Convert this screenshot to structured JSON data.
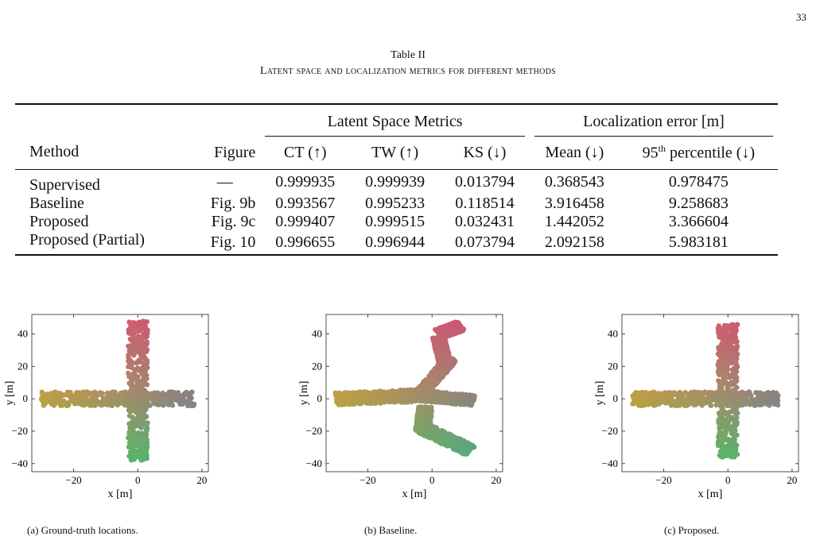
{
  "page_number": "33",
  "table": {
    "title": "Table II",
    "caption": "Latent space and localization metrics for different methods",
    "group_headers": [
      "Latent Space Metrics",
      "Localization error [m]"
    ],
    "columns": [
      "Method",
      "Figure",
      "CT (↑)",
      "TW (↑)",
      "KS (↓)",
      "Mean (↓)",
      "95th percentile (↓)"
    ],
    "col95_main": "95",
    "col95_sup": "th",
    "col95_rest": " percentile (↓)",
    "rows": [
      [
        "Supervised",
        "—",
        "0.999935",
        "0.999939",
        "0.013794",
        "0.368543",
        "0.978475"
      ],
      [
        "Baseline",
        "Fig. 9b",
        "0.993567",
        "0.995233",
        "0.118514",
        "3.916458",
        "9.258683"
      ],
      [
        "Proposed",
        "Fig. 9c",
        "0.999407",
        "0.999515",
        "0.032431",
        "1.442052",
        "3.366604"
      ],
      [
        "Proposed (Partial)",
        "Fig. 10",
        "0.996655",
        "0.996944",
        "0.073794",
        "2.092158",
        "5.983181"
      ]
    ]
  },
  "chart_data": [
    {
      "type": "scatter",
      "caption": "(a) Ground-truth locations.",
      "xlabel": "x [m]",
      "ylabel": "y [m]",
      "xlim": [
        -33,
        22
      ],
      "ylim": [
        -45,
        52
      ],
      "xticks": [
        -20,
        0,
        20
      ],
      "yticks": [
        -40,
        -20,
        0,
        20,
        40
      ],
      "arms": [
        {
          "from": [
            -30,
            0
          ],
          "to": [
            18,
            0
          ],
          "width": 9
        },
        {
          "from": [
            0,
            -38
          ],
          "to": [
            0,
            48
          ],
          "width": 11
        }
      ]
    },
    {
      "type": "scatter",
      "caption": "(b) Baseline.",
      "xlabel": "x [m]",
      "ylabel": "y [m]",
      "xlim": [
        -33,
        22
      ],
      "ylim": [
        -45,
        52
      ],
      "xticks": [
        -20,
        0,
        20
      ],
      "yticks": [
        -40,
        -20,
        0,
        20,
        40
      ],
      "arms": [
        {
          "from": [
            -30,
            0
          ],
          "to": [
            -4,
            2
          ],
          "width": 8
        },
        {
          "from": [
            -4,
            2
          ],
          "to": [
            13,
            -1
          ],
          "width": 7
        },
        {
          "from": [
            -4,
            2
          ],
          "to": [
            6,
            25
          ],
          "width": 7
        },
        {
          "from": [
            4,
            22
          ],
          "to": [
            2,
            38
          ],
          "width": 7
        },
        {
          "from": [
            2,
            40
          ],
          "to": [
            9,
            45
          ],
          "width": 7
        },
        {
          "from": [
            -2,
            -5
          ],
          "to": [
            -3,
            -20
          ],
          "width": 8
        },
        {
          "from": [
            -3,
            -18
          ],
          "to": [
            12,
            -32
          ],
          "width": 8
        }
      ]
    },
    {
      "type": "scatter",
      "caption": "(c) Proposed.",
      "xlabel": "x [m]",
      "ylabel": "y [m]",
      "xlim": [
        -33,
        22
      ],
      "ylim": [
        -45,
        52
      ],
      "xticks": [
        -20,
        0,
        20
      ],
      "yticks": [
        -40,
        -20,
        0,
        20,
        40
      ],
      "arms": [
        {
          "from": [
            -30,
            0
          ],
          "to": [
            16,
            0
          ],
          "width": 9
        },
        {
          "from": [
            0,
            -36
          ],
          "to": [
            0,
            46
          ],
          "width": 11
        }
      ]
    }
  ]
}
